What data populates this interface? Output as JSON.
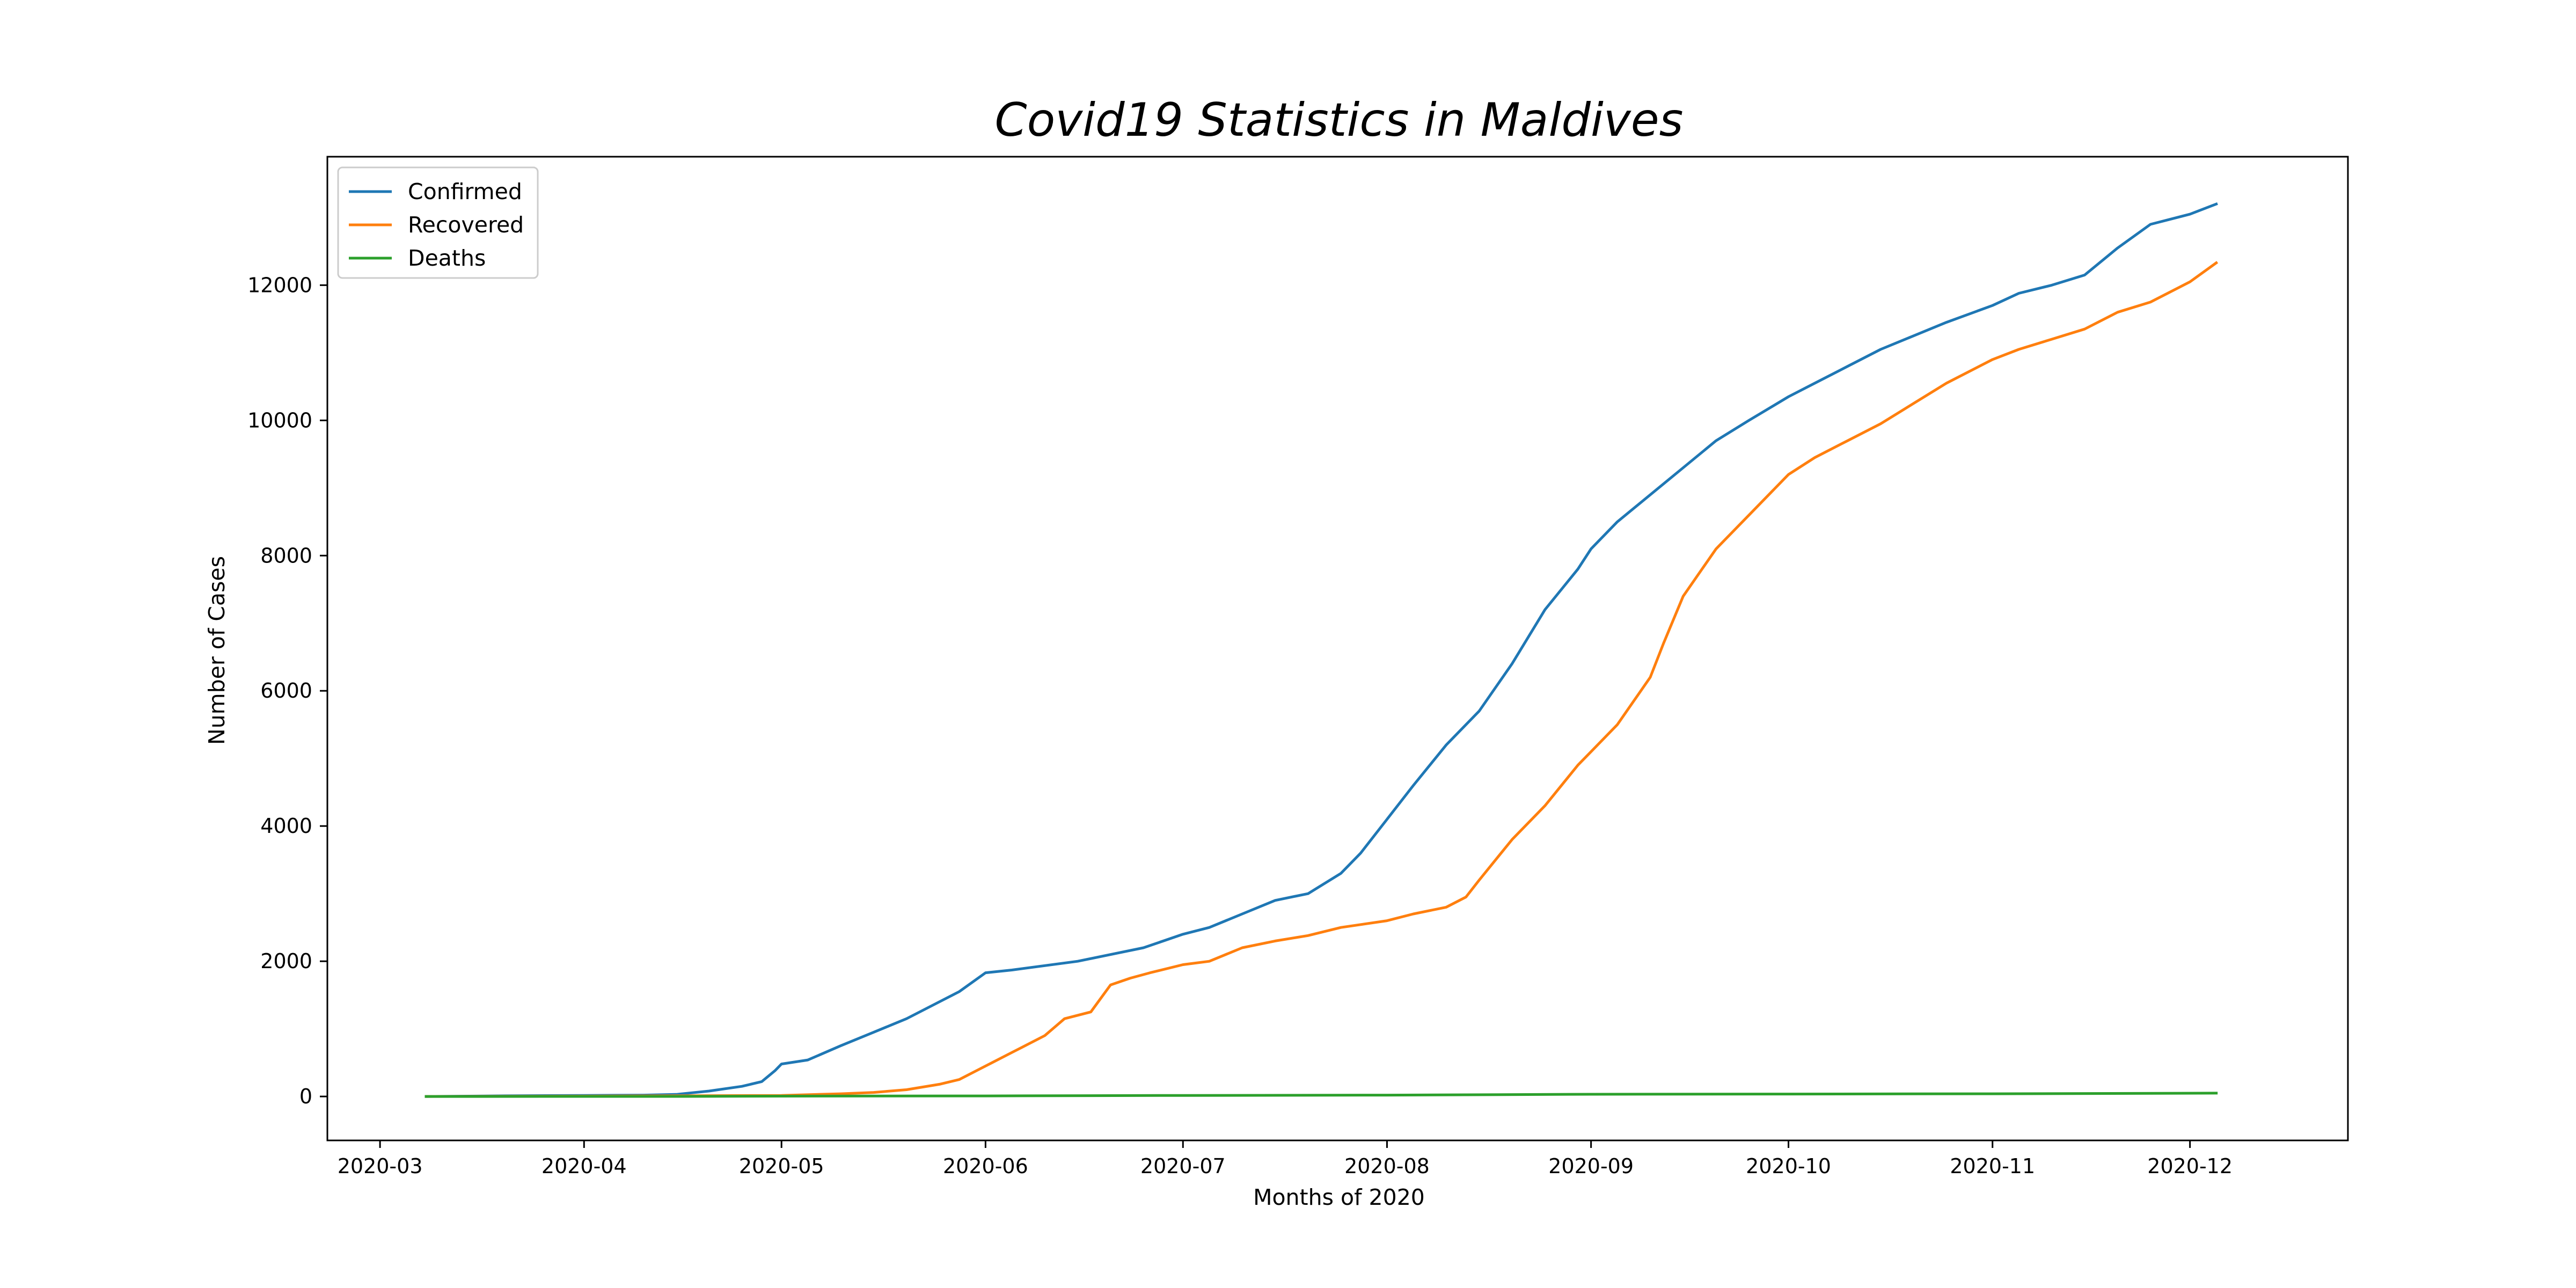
{
  "chart_data": {
    "type": "line",
    "title": "Covid19 Statistics in Maldives",
    "xlabel": "Months of 2020",
    "ylabel": "Number of Cases",
    "xlim": [
      "2020-02-22",
      "2020-12-25"
    ],
    "ylim": [
      -650,
      13900
    ],
    "x_ticks": [
      "2020-03",
      "2020-04",
      "2020-05",
      "2020-06",
      "2020-07",
      "2020-08",
      "2020-09",
      "2020-10",
      "2020-11",
      "2020-12"
    ],
    "y_ticks": [
      0,
      2000,
      4000,
      6000,
      8000,
      10000,
      12000
    ],
    "grid": false,
    "legend_position": "top-left",
    "series": [
      {
        "name": "Confirmed",
        "color": "#1f77b4",
        "points": [
          [
            "2020-03-08",
            0
          ],
          [
            "2020-03-20",
            10
          ],
          [
            "2020-04-01",
            15
          ],
          [
            "2020-04-10",
            20
          ],
          [
            "2020-04-15",
            30
          ],
          [
            "2020-04-20",
            80
          ],
          [
            "2020-04-25",
            150
          ],
          [
            "2020-04-28",
            220
          ],
          [
            "2020-04-30",
            380
          ],
          [
            "2020-05-01",
            480
          ],
          [
            "2020-05-05",
            540
          ],
          [
            "2020-05-10",
            750
          ],
          [
            "2020-05-15",
            950
          ],
          [
            "2020-05-20",
            1150
          ],
          [
            "2020-05-25",
            1400
          ],
          [
            "2020-05-28",
            1550
          ],
          [
            "2020-06-01",
            1830
          ],
          [
            "2020-06-05",
            1870
          ],
          [
            "2020-06-15",
            2000
          ],
          [
            "2020-06-25",
            2200
          ],
          [
            "2020-07-01",
            2400
          ],
          [
            "2020-07-05",
            2500
          ],
          [
            "2020-07-10",
            2700
          ],
          [
            "2020-07-15",
            2900
          ],
          [
            "2020-07-20",
            3000
          ],
          [
            "2020-07-25",
            3300
          ],
          [
            "2020-07-28",
            3600
          ],
          [
            "2020-08-01",
            4100
          ],
          [
            "2020-08-05",
            4600
          ],
          [
            "2020-08-10",
            5200
          ],
          [
            "2020-08-15",
            5700
          ],
          [
            "2020-08-20",
            6400
          ],
          [
            "2020-08-25",
            7200
          ],
          [
            "2020-08-30",
            7800
          ],
          [
            "2020-09-01",
            8100
          ],
          [
            "2020-09-05",
            8500
          ],
          [
            "2020-09-10",
            8900
          ],
          [
            "2020-09-15",
            9300
          ],
          [
            "2020-09-20",
            9700
          ],
          [
            "2020-09-25",
            10000
          ],
          [
            "2020-10-01",
            10350
          ],
          [
            "2020-10-05",
            10550
          ],
          [
            "2020-10-10",
            10800
          ],
          [
            "2020-10-15",
            11050
          ],
          [
            "2020-10-20",
            11250
          ],
          [
            "2020-10-25",
            11450
          ],
          [
            "2020-11-01",
            11700
          ],
          [
            "2020-11-05",
            11880
          ],
          [
            "2020-11-10",
            12000
          ],
          [
            "2020-11-15",
            12150
          ],
          [
            "2020-11-20",
            12550
          ],
          [
            "2020-11-25",
            12900
          ],
          [
            "2020-12-01",
            13050
          ],
          [
            "2020-12-05",
            13200
          ]
        ]
      },
      {
        "name": "Recovered",
        "color": "#ff7f0e",
        "points": [
          [
            "2020-03-08",
            0
          ],
          [
            "2020-04-01",
            5
          ],
          [
            "2020-04-15",
            10
          ],
          [
            "2020-05-01",
            15
          ],
          [
            "2020-05-10",
            40
          ],
          [
            "2020-05-15",
            60
          ],
          [
            "2020-05-20",
            100
          ],
          [
            "2020-05-25",
            180
          ],
          [
            "2020-05-28",
            250
          ],
          [
            "2020-05-31",
            400
          ],
          [
            "2020-06-02",
            500
          ],
          [
            "2020-06-05",
            650
          ],
          [
            "2020-06-10",
            900
          ],
          [
            "2020-06-13",
            1150
          ],
          [
            "2020-06-17",
            1250
          ],
          [
            "2020-06-20",
            1650
          ],
          [
            "2020-06-23",
            1750
          ],
          [
            "2020-06-26",
            1830
          ],
          [
            "2020-07-01",
            1950
          ],
          [
            "2020-07-05",
            2000
          ],
          [
            "2020-07-10",
            2200
          ],
          [
            "2020-07-15",
            2300
          ],
          [
            "2020-07-20",
            2380
          ],
          [
            "2020-07-25",
            2500
          ],
          [
            "2020-08-01",
            2600
          ],
          [
            "2020-08-05",
            2700
          ],
          [
            "2020-08-10",
            2800
          ],
          [
            "2020-08-13",
            2950
          ],
          [
            "2020-08-15",
            3200
          ],
          [
            "2020-08-20",
            3800
          ],
          [
            "2020-08-25",
            4300
          ],
          [
            "2020-08-30",
            4900
          ],
          [
            "2020-09-01",
            5100
          ],
          [
            "2020-09-05",
            5500
          ],
          [
            "2020-09-10",
            6200
          ],
          [
            "2020-09-12",
            6700
          ],
          [
            "2020-09-15",
            7400
          ],
          [
            "2020-09-20",
            8100
          ],
          [
            "2020-09-25",
            8600
          ],
          [
            "2020-10-01",
            9200
          ],
          [
            "2020-10-05",
            9450
          ],
          [
            "2020-10-10",
            9700
          ],
          [
            "2020-10-15",
            9950
          ],
          [
            "2020-10-20",
            10250
          ],
          [
            "2020-10-25",
            10550
          ],
          [
            "2020-11-01",
            10900
          ],
          [
            "2020-11-05",
            11050
          ],
          [
            "2020-11-10",
            11200
          ],
          [
            "2020-11-15",
            11350
          ],
          [
            "2020-11-20",
            11600
          ],
          [
            "2020-11-25",
            11750
          ],
          [
            "2020-11-28",
            11900
          ],
          [
            "2020-12-01",
            12050
          ],
          [
            "2020-12-05",
            12330
          ]
        ]
      },
      {
        "name": "Deaths",
        "color": "#2ca02c",
        "points": [
          [
            "2020-03-08",
            0
          ],
          [
            "2020-04-15",
            1
          ],
          [
            "2020-05-01",
            5
          ],
          [
            "2020-06-01",
            8
          ],
          [
            "2020-07-01",
            15
          ],
          [
            "2020-08-01",
            20
          ],
          [
            "2020-09-01",
            33
          ],
          [
            "2020-10-01",
            36
          ],
          [
            "2020-11-01",
            40
          ],
          [
            "2020-12-05",
            49
          ]
        ]
      }
    ]
  }
}
